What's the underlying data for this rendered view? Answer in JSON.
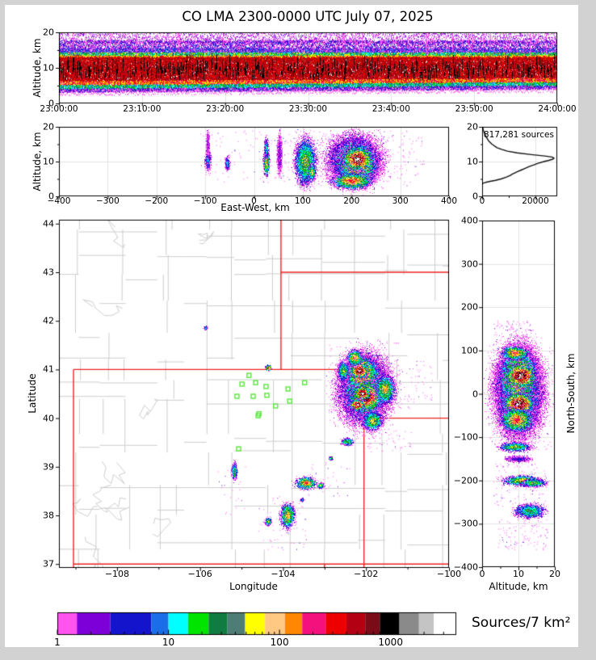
{
  "title": "CO LMA 2300-0000 UTC July 07, 2025",
  "panels": {
    "time_height": {
      "ylabel": "Altitude, km",
      "yticks": [
        0,
        10,
        20
      ],
      "yticks_minor": [
        5,
        15
      ],
      "xtick_labels": [
        "23:00:00",
        "23:10:00",
        "23:20:00",
        "23:30:00",
        "23:40:00",
        "23:50:00",
        "24:00:00"
      ],
      "ylim": [
        0,
        20
      ]
    },
    "east_west": {
      "ylabel": "Altitude, km",
      "xlabel": "East-West, km",
      "xticks": [
        -400,
        -300,
        -200,
        -100,
        0,
        100,
        200,
        300,
        400
      ],
      "yticks": [
        0,
        10,
        20
      ],
      "yticks_minor": [
        5,
        15
      ],
      "xlim": [
        -400,
        400
      ],
      "ylim": [
        0,
        20
      ]
    },
    "histogram": {
      "annotation": "817,281 sources",
      "xticks": [
        0,
        20000
      ],
      "xticks_minor": [
        10000
      ],
      "yticks": [
        0,
        10,
        20
      ],
      "yticks_minor": [
        5,
        15
      ],
      "xlim": [
        0,
        28200
      ],
      "ylim": [
        0,
        20
      ]
    },
    "map": {
      "xlabel": "Longitude",
      "ylabel": "Latitude",
      "xticks": [
        -108,
        -106,
        -104,
        -102,
        -100
      ],
      "xticks_minor": [
        -109,
        -107,
        -105,
        -103,
        -101
      ],
      "yticks": [
        37,
        38,
        39,
        40,
        41,
        42,
        43,
        44
      ],
      "lon_range": [
        -109.4,
        -99.96
      ],
      "lat_range": [
        36.92,
        44.08
      ]
    },
    "north_south": {
      "xlabel": "Altitude, km",
      "ylabel": "North-South, km",
      "xticks": [
        0,
        10,
        20
      ],
      "xticks_minor": [
        5,
        15
      ],
      "yticks": [
        400,
        300,
        200,
        100,
        0,
        -100,
        -200,
        -300,
        -400
      ],
      "xlim": [
        0,
        20
      ],
      "ylim": [
        -400,
        400
      ]
    },
    "colorbar": {
      "label": "Sources/7 km²",
      "ticks": [
        1,
        10,
        100,
        1000
      ],
      "max": 3900,
      "colors": [
        "#ff55ee",
        "#7d00d9",
        "#1414cc",
        "#1c6ee8",
        "#00ffff",
        "#00e400",
        "#107c41",
        "#4e7d77",
        "#ffff00",
        "#ffc883",
        "#ff8800",
        "#f5117d",
        "#ee0000",
        "#b30013",
        "#7a0c18",
        "#000000",
        "#8a8a8a",
        "#c4c4c4",
        "#ffffff"
      ],
      "level_boundaries": [
        1,
        1.5,
        3,
        7,
        10,
        15,
        23,
        34,
        49,
        74,
        112,
        160,
        260,
        400,
        590,
        800,
        1200,
        1800,
        2450,
        3900
      ]
    }
  },
  "chart_data": {
    "type": "heatmap",
    "description": "Lightning Mapping Array source-density composite: time-height panel, east-west altitude cross-section, source altitude histogram, plan-view lat/lon map, north-south altitude cross-section, log color scale of sources per 7 km^2",
    "total_sources": 817281,
    "altitude_histogram_profile": [
      [
        3.5,
        0
      ],
      [
        3.6,
        60
      ],
      [
        3.8,
        430
      ],
      [
        4,
        1300
      ],
      [
        4.3,
        3000
      ],
      [
        4.6,
        5000
      ],
      [
        5,
        7100
      ],
      [
        5.5,
        9000
      ],
      [
        6,
        10600
      ],
      [
        6.3,
        11100
      ],
      [
        6.6,
        11900
      ],
      [
        6.9,
        12700
      ],
      [
        7.1,
        13300
      ],
      [
        7.5,
        14500
      ],
      [
        8,
        16000
      ],
      [
        8.5,
        17500
      ],
      [
        9,
        19200
      ],
      [
        9.5,
        21000
      ],
      [
        10,
        23200
      ],
      [
        10.3,
        24800
      ],
      [
        10.7,
        26600
      ],
      [
        11,
        27000
      ],
      [
        11.3,
        26200
      ],
      [
        11.6,
        23500
      ],
      [
        12,
        18500
      ],
      [
        12.5,
        13200
      ],
      [
        13,
        9500
      ],
      [
        13.5,
        7300
      ],
      [
        14,
        5600
      ],
      [
        15,
        3700
      ],
      [
        16,
        2400
      ],
      [
        17,
        1600
      ],
      [
        18,
        900
      ],
      [
        19,
        450
      ],
      [
        20,
        220
      ]
    ],
    "stations_lonlat": [
      [
        -104.82,
        40.88
      ],
      [
        -104.66,
        40.73
      ],
      [
        -104.99,
        40.7
      ],
      [
        -104.41,
        40.65
      ],
      [
        -105.11,
        40.45
      ],
      [
        -104.72,
        40.45
      ],
      [
        -104.39,
        40.47
      ],
      [
        -103.88,
        40.6
      ],
      [
        -104.18,
        40.25
      ],
      [
        -103.84,
        40.35
      ],
      [
        -104.58,
        40.09
      ],
      [
        -104.6,
        40.05
      ],
      [
        -105.07,
        39.37
      ],
      [
        -103.48,
        40.73
      ]
    ],
    "map_clusters": [
      {
        "lon": -102.05,
        "lat": 40.6,
        "rx": 0.72,
        "ry": 0.82,
        "levels": 6
      },
      {
        "lon": -102.05,
        "lat": 40.62,
        "rx": 0.56,
        "ry": 0.66,
        "levels": 11
      },
      {
        "lon": -102.12,
        "lat": 40.92,
        "rx": 0.4,
        "ry": 0.4,
        "levels": 15
      },
      {
        "lon": -102.17,
        "lat": 40.98,
        "rx": 0.23,
        "ry": 0.18,
        "levels": 19
      },
      {
        "lon": -102.0,
        "lat": 40.44,
        "rx": 0.44,
        "ry": 0.36,
        "levels": 16
      },
      {
        "lon": -102.1,
        "lat": 40.52,
        "rx": 0.22,
        "ry": 0.16,
        "levels": 19
      },
      {
        "lon": -102.22,
        "lat": 40.28,
        "rx": 0.18,
        "ry": 0.13,
        "levels": 19
      },
      {
        "lon": -101.55,
        "lat": 40.6,
        "rx": 0.26,
        "ry": 0.32,
        "levels": 11
      },
      {
        "lon": -102.55,
        "lat": 40.98,
        "rx": 0.16,
        "ry": 0.22,
        "levels": 9
      },
      {
        "lon": -101.85,
        "lat": 39.95,
        "rx": 0.26,
        "ry": 0.22,
        "levels": 10
      },
      {
        "lon": -102.28,
        "lat": 41.25,
        "rx": 0.2,
        "ry": 0.18,
        "levels": 12
      },
      {
        "lon": -104.36,
        "lat": 41.04,
        "rx": 0.08,
        "ry": 0.07,
        "levels": 16
      },
      {
        "lon": -105.87,
        "lat": 41.86,
        "rx": 0.06,
        "ry": 0.05,
        "levels": 6
      },
      {
        "lon": -102.45,
        "lat": 39.52,
        "rx": 0.17,
        "ry": 0.09,
        "levels": 8
      },
      {
        "lon": -102.85,
        "lat": 39.18,
        "rx": 0.06,
        "ry": 0.05,
        "levels": 6
      },
      {
        "lon": -105.18,
        "lat": 38.92,
        "rx": 0.08,
        "ry": 0.18,
        "levels": 8
      },
      {
        "lon": -103.45,
        "lat": 38.67,
        "rx": 0.28,
        "ry": 0.14,
        "levels": 13
      },
      {
        "lon": -103.1,
        "lat": 38.62,
        "rx": 0.09,
        "ry": 0.07,
        "levels": 9
      },
      {
        "lon": -103.9,
        "lat": 38.0,
        "rx": 0.19,
        "ry": 0.28,
        "levels": 11
      },
      {
        "lon": -104.36,
        "lat": 37.88,
        "rx": 0.09,
        "ry": 0.1,
        "levels": 9
      },
      {
        "lon": -103.55,
        "lat": 38.33,
        "rx": 0.06,
        "ry": 0.05,
        "levels": 5
      }
    ],
    "map_scatter": [
      {
        "lon0": -102.9,
        "lon1": -101.2,
        "lat0": 39.8,
        "lat1": 41.6,
        "n": 170
      },
      {
        "lon0": -101.6,
        "lon1": -100.4,
        "lat0": 40.2,
        "lat1": 41.2,
        "n": 90
      },
      {
        "lon0": -102.0,
        "lon1": -100.9,
        "lat0": 39.3,
        "lat1": 39.75,
        "n": 55
      },
      {
        "lon0": -104.6,
        "lon1": -103.4,
        "lat0": 37.3,
        "lat1": 38.4,
        "n": 55
      },
      {
        "lon0": -105.6,
        "lon1": -104.9,
        "lat0": 38.0,
        "lat1": 39.1,
        "n": 22
      },
      {
        "lon0": -103.4,
        "lon1": -102.4,
        "lat0": 38.4,
        "lat1": 39.1,
        "n": 35
      }
    ],
    "ew_clusters": [
      {
        "x": -95,
        "alt": 10.5,
        "rx": 7,
        "ralt": 3.4,
        "levels": 5
      },
      {
        "x": -95,
        "alt": 15.0,
        "rx": 4,
        "ralt": 4.5,
        "levels": 2
      },
      {
        "x": -55,
        "alt": 9.5,
        "rx": 6,
        "ralt": 2.2,
        "levels": 5
      },
      {
        "x": 25,
        "alt": 10.0,
        "rx": 7,
        "ralt": 4.4,
        "levels": 11
      },
      {
        "x": 25,
        "alt": 14.0,
        "rx": 5,
        "ralt": 3.5,
        "levels": 6
      },
      {
        "x": 52,
        "alt": 12.0,
        "rx": 6,
        "ralt": 6.5,
        "levels": 2
      },
      {
        "x": 105,
        "alt": 10.0,
        "rx": 24,
        "ralt": 7.6,
        "levels": 9
      },
      {
        "x": 118,
        "alt": 7.0,
        "rx": 9,
        "ralt": 2.6,
        "levels": 10
      },
      {
        "x": 205,
        "alt": 10.5,
        "rx": 62,
        "ralt": 8.2,
        "levels": 6
      },
      {
        "x": 208,
        "alt": 10.0,
        "rx": 50,
        "ralt": 6.6,
        "levels": 12
      },
      {
        "x": 212,
        "alt": 9.5,
        "rx": 42,
        "ralt": 5.6,
        "levels": 15
      },
      {
        "x": 212,
        "alt": 10.8,
        "rx": 32,
        "ralt": 3.7,
        "levels": 19
      },
      {
        "x": 200,
        "alt": 4.5,
        "rx": 45,
        "ralt": 2.6,
        "levels": 13
      }
    ],
    "ew_scatter": [
      {
        "x0": 140,
        "x1": 350,
        "a0": 3,
        "a1": 19.5,
        "n": 220
      },
      {
        "x0": -110,
        "x1": 60,
        "a0": 4,
        "a1": 19,
        "n": 90
      },
      {
        "x0": 60,
        "x1": 140,
        "a0": 2.5,
        "a1": 19.5,
        "n": 90
      }
    ],
    "ns_clusters": [
      {
        "ns": 5,
        "alt": 10.0,
        "rns": 118,
        "ralt": 7.6,
        "levels": 5
      },
      {
        "ns": 10,
        "alt": 10.0,
        "rns": 105,
        "ralt": 6.6,
        "levels": 9
      },
      {
        "ns": 40,
        "alt": 10.0,
        "rns": 66,
        "ralt": 5.6,
        "levels": 14
      },
      {
        "ns": 42,
        "alt": 10.5,
        "rns": 30,
        "ralt": 4.6,
        "levels": 19
      },
      {
        "ns": -22,
        "alt": 10.0,
        "rns": 28,
        "ralt": 4.6,
        "levels": 19
      },
      {
        "ns": -60,
        "alt": 9.5,
        "rns": 30,
        "ralt": 5.0,
        "levels": 13
      },
      {
        "ns": 95,
        "alt": 9.0,
        "rns": 18,
        "ralt": 4.2,
        "levels": 13
      },
      {
        "ns": -122,
        "alt": 9.0,
        "rns": 12,
        "ralt": 4.6,
        "levels": 9
      },
      {
        "ns": -150,
        "alt": 10.0,
        "rns": 8,
        "ralt": 4.0,
        "levels": 3
      },
      {
        "ns": -200,
        "alt": 11.0,
        "rns": 13,
        "ralt": 5.6,
        "levels": 11
      },
      {
        "ns": -205,
        "alt": 14.0,
        "rns": 10,
        "ralt": 4.0,
        "levels": 9
      },
      {
        "ns": -270,
        "alt": 13.0,
        "rns": 18,
        "ralt": 4.6,
        "levels": 8
      }
    ],
    "ns_scatter": [
      {
        "ns0": 115,
        "ns1": 170,
        "a0": 3,
        "a1": 14,
        "n": 90
      },
      {
        "ns0": -360,
        "ns1": -290,
        "a0": 4,
        "a1": 18,
        "n": 110
      },
      {
        "ns0": -260,
        "ns1": -160,
        "a0": 3,
        "a1": 18,
        "n": 140
      },
      {
        "ns0": -130,
        "ns1": 120,
        "a0": 2,
        "a1": 19.5,
        "n": 160
      }
    ],
    "time_height_bands": [
      {
        "a0": 17.2,
        "a1": 20.0,
        "colors": [
          "#ff55ee",
          "#b24bf0",
          "#7d00d9"
        ],
        "d": 5
      },
      {
        "a0": 15.2,
        "a1": 17.8,
        "colors": [
          "#7d00d9",
          "#ff55ee",
          "#1414cc"
        ],
        "d": 9
      },
      {
        "a0": 13.6,
        "a1": 15.6,
        "colors": [
          "#1414cc",
          "#7d00d9",
          "#1c6ee8",
          "#ff55ee"
        ],
        "d": 13
      },
      {
        "a0": 13.0,
        "a1": 14.4,
        "colors": [
          "#00e400",
          "#00ffff",
          "#107c41",
          "#4e7d77",
          "#ffff00"
        ],
        "d": 10
      },
      {
        "a0": 12.4,
        "a1": 13.5,
        "colors": [
          "#ffff00",
          "#ff8800",
          "#ee0000"
        ],
        "d": 8
      },
      {
        "a0": 5.9,
        "a1": 13.1,
        "colors": [
          "#ee0000",
          "#d00000",
          "#b30013",
          "#7a0c18"
        ],
        "d": 66
      },
      {
        "a0": 4.9,
        "a1": 6.3,
        "colors": [
          "#ffff00",
          "#ff8800",
          "#f5117d",
          "#ee0000"
        ],
        "d": 11
      },
      {
        "a0": 3.9,
        "a1": 5.2,
        "colors": [
          "#00e400",
          "#00ffff",
          "#1c6ee8",
          "#107c41"
        ],
        "d": 9
      },
      {
        "a0": 3.2,
        "a1": 4.2,
        "colors": [
          "#ff55ee",
          "#7d00d9",
          "#1414cc"
        ],
        "d": 5
      },
      {
        "a0": 2.3,
        "a1": 3.4,
        "colors": [
          "#ff55ee"
        ],
        "d": 1
      }
    ],
    "state_borders_lonlat": [
      [
        -109.05,
        41,
        -102.05,
        41
      ],
      [
        -104.05,
        44.08,
        -104.05,
        41
      ],
      [
        -104.05,
        43,
        -99.96,
        43
      ],
      [
        -102.05,
        41,
        -102.05,
        36.92
      ],
      [
        -102.05,
        40,
        -99.96,
        40
      ],
      [
        -109.05,
        41,
        -109.05,
        36.92
      ],
      [
        -109.05,
        37,
        -99.96,
        37
      ],
      [
        -103.0,
        37,
        -103.0,
        36.92
      ]
    ],
    "station_color": "#55e838",
    "county_line_color": "#cccccc",
    "state_line_color": "#ee2222"
  }
}
